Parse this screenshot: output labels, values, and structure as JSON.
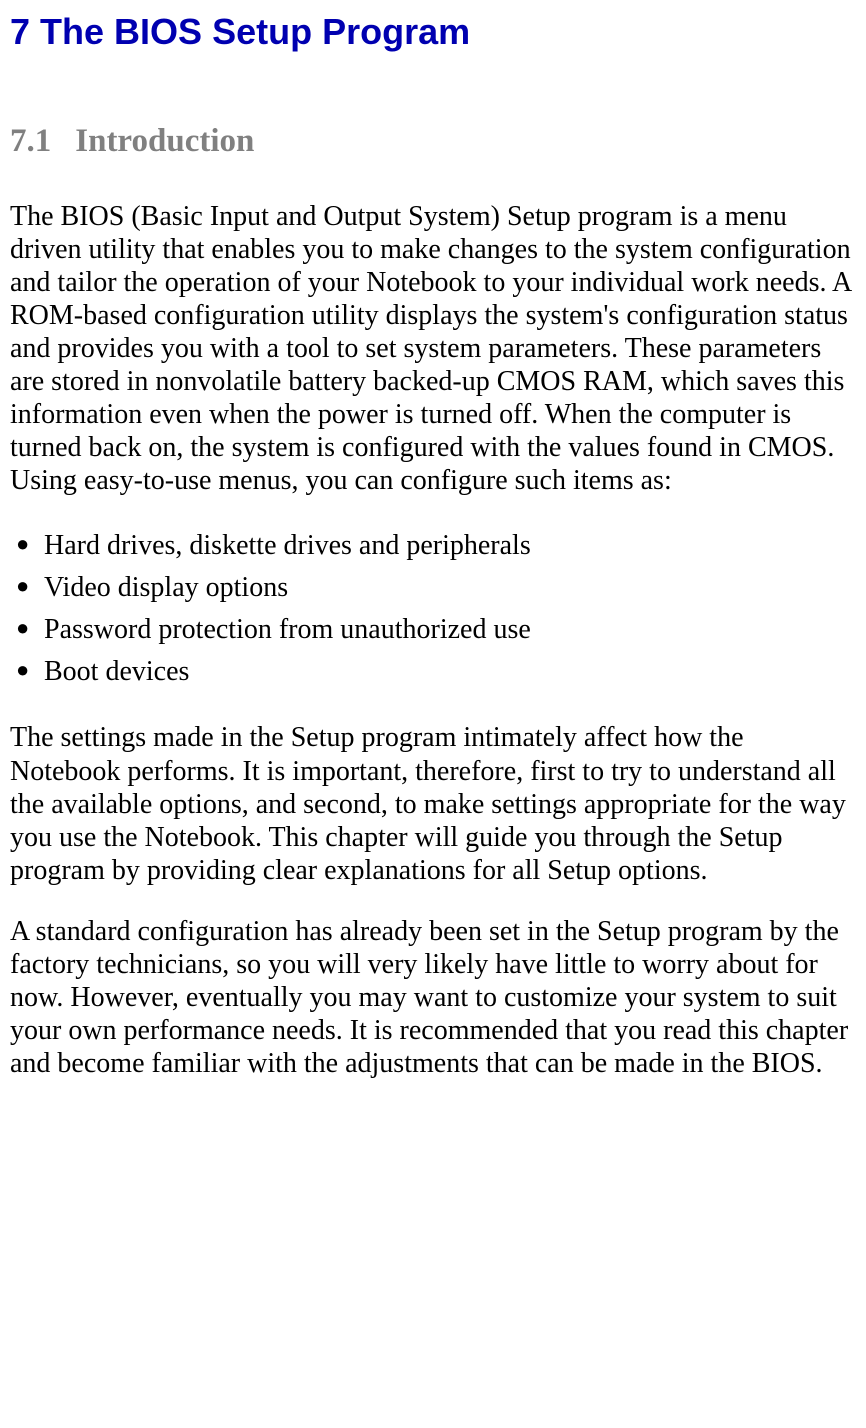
{
  "chapter": {
    "number": "7",
    "title": "The BIOS Setup Program",
    "title_color": "#0000b0",
    "title_fontsize": 36,
    "title_fontfamily": "Arial"
  },
  "section": {
    "number": "7.1",
    "title": "Introduction",
    "title_color": "#808080",
    "title_fontsize": 33,
    "title_fontfamily": "Times New Roman"
  },
  "paragraphs": {
    "p1": "The BIOS (Basic Input and Output System) Setup program is a menu driven utility that enables you to make changes to the system configuration and tailor the operation of your Notebook to your individual work needs. A ROM-based configuration utility displays the system's configuration status and provides you with a tool to set system parameters. These parameters are stored in nonvolatile battery backed-up CMOS RAM, which saves this information even when the power is turned off. When the computer is turned back on, the system is configured with the values found in CMOS. Using easy-to-use menus, you can configure such items as:",
    "p2": "The settings made in the Setup program intimately affect how the Notebook performs. It is important, therefore, first to try to understand all the available options, and second, to make settings appropriate for the way you use the Notebook. This chapter will guide you through the Setup program by providing clear explanations for all Setup options.",
    "p3": "A standard configuration has already been set in the Setup program by the factory technicians, so you will very likely have little to worry about for now. However, eventually you may want to customize your system to suit your own performance needs. It is recommended that you read this chapter and become familiar with the adjustments that can be made in the BIOS."
  },
  "bullets": {
    "b1": "Hard drives, diskette drives and peripherals",
    "b2": "Video display options",
    "b3": "Password protection from unauthorized use",
    "b4": "Boot devices"
  },
  "styles": {
    "body_fontsize": 28,
    "body_color": "#000000",
    "body_fontfamily": "Times New Roman",
    "background_color": "#ffffff"
  }
}
